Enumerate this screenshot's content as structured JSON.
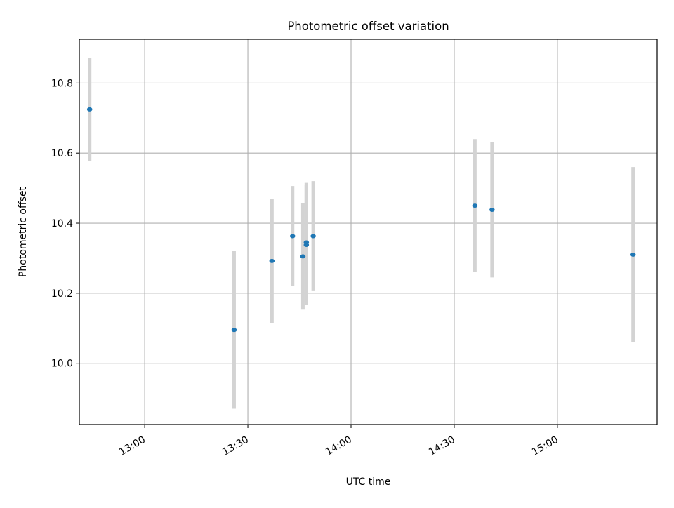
{
  "chart_data": {
    "type": "scatter",
    "title": "Photometric offset variation",
    "xlabel": "UTC time",
    "ylabel": "Photometric offset",
    "x_ticks": [
      "13:00",
      "13:30",
      "14:00",
      "14:30",
      "15:00"
    ],
    "y_ticks": [
      "10.0",
      "10.2",
      "10.4",
      "10.6",
      "10.8"
    ],
    "xlim": [
      "12:41",
      "15:29"
    ],
    "ylim": [
      9.825,
      10.925
    ],
    "grid": true,
    "points": [
      {
        "time": "12:44",
        "value": 10.725,
        "error": 0.148
      },
      {
        "time": "13:26",
        "value": 10.095,
        "error": 0.225
      },
      {
        "time": "13:37",
        "value": 10.292,
        "error": 0.178
      },
      {
        "time": "13:43",
        "value": 10.363,
        "error": 0.143
      },
      {
        "time": "13:46",
        "value": 10.305,
        "error": 0.152
      },
      {
        "time": "13:47",
        "value": 10.345,
        "error": 0.17
      },
      {
        "time": "13:47",
        "value": 10.338,
        "error": 0.172
      },
      {
        "time": "13:49",
        "value": 10.363,
        "error": 0.157
      },
      {
        "time": "14:36",
        "value": 10.45,
        "error": 0.19
      },
      {
        "time": "14:41",
        "value": 10.438,
        "error": 0.193
      },
      {
        "time": "15:22",
        "value": 10.31,
        "error": 0.25
      }
    ],
    "colors": {
      "marker": "#1f77b4",
      "errorbar": "#d3d3d3",
      "grid": "#b0b0b0",
      "axes": "#000000"
    }
  }
}
